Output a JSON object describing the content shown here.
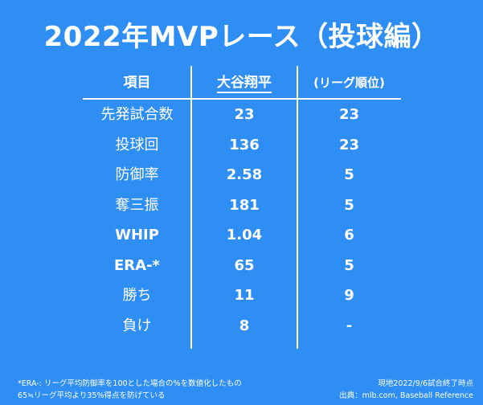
{
  "title": "2022年MVPレース（投球編）",
  "table": {
    "headers": [
      "項目",
      "大谷翔平",
      "(リーグ順位)"
    ],
    "rows": [
      {
        "item": "先発試合数",
        "value": "23",
        "rank": "23"
      },
      {
        "item": "投球回",
        "value": "136",
        "rank": "23"
      },
      {
        "item": "防御率",
        "value": "2.58",
        "rank": "5"
      },
      {
        "item": "奪三振",
        "value": "181",
        "rank": "5"
      },
      {
        "item": "WHIP",
        "value": "1.04",
        "rank": "6"
      },
      {
        "item": "ERA-*",
        "value": "65",
        "rank": "5"
      },
      {
        "item": "勝ち",
        "value": "11",
        "rank": "9"
      },
      {
        "item": "負け",
        "value": "8",
        "rank": "-"
      }
    ]
  },
  "footnote": {
    "line1": "*ERA-: リーグ平均防御率を100とした場合の%を数値化したもの",
    "line2": "65≒リーグ平均より35%得点を防げている"
  },
  "source": {
    "line1": "現地2022/9/6試合終了時点",
    "line2": "出典：mlb.com, Baseball Reference"
  },
  "colors": {
    "background": "#2f8ef4",
    "text": "#ffffff"
  }
}
